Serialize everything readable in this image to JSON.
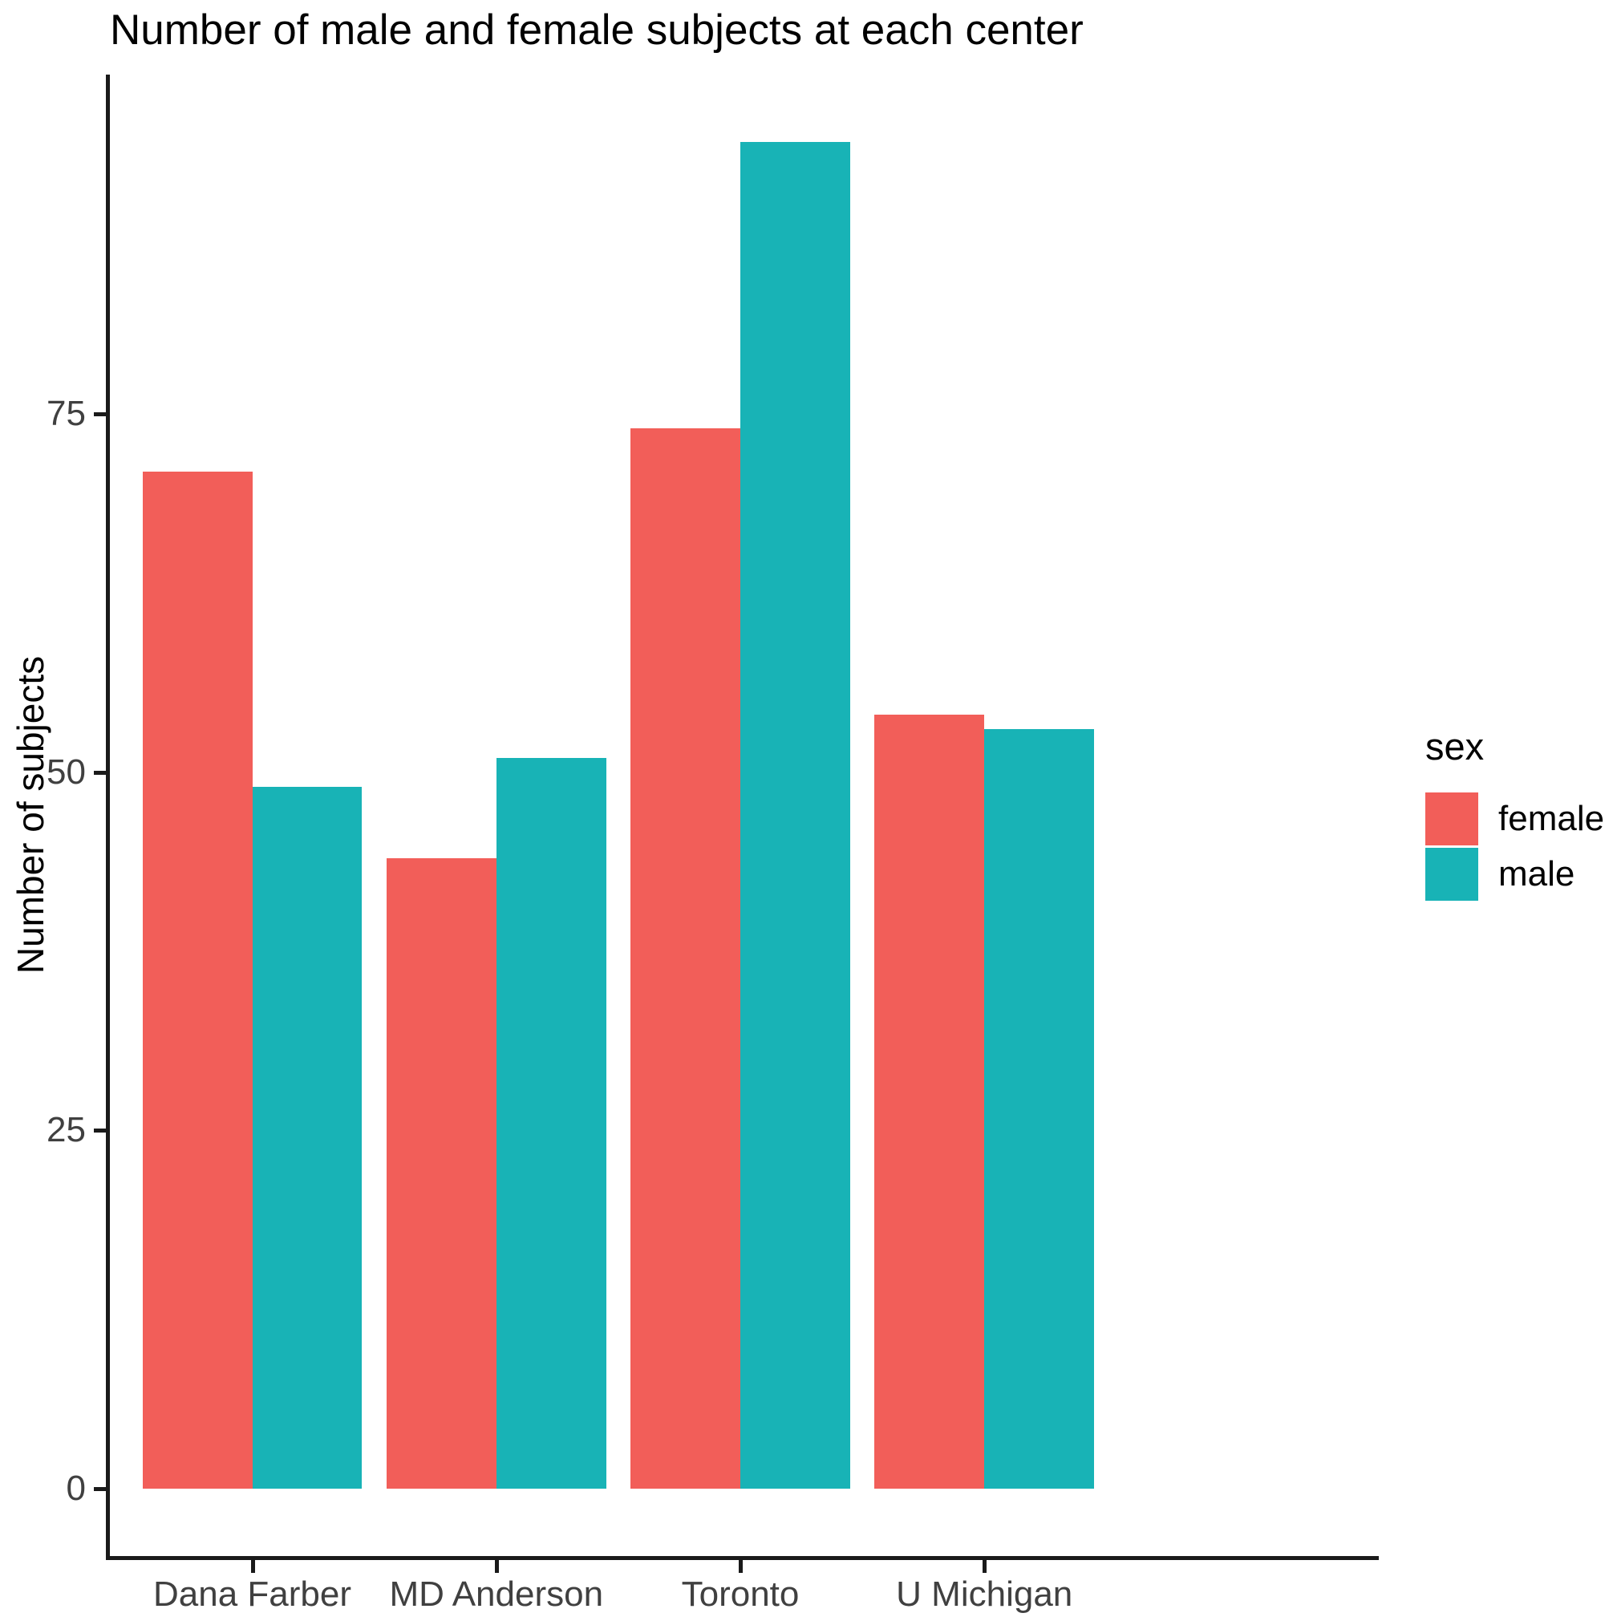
{
  "title": "Number of male and female subjects at each center",
  "legend": {
    "title": "sex",
    "items": [
      {
        "label": "female",
        "color": "#F25E59"
      },
      {
        "label": "male",
        "color": "#18B3B6"
      }
    ],
    "position": "right"
  },
  "chart_data": {
    "type": "bar",
    "grouping": "dodged",
    "title": "Number of male and female subjects at each center",
    "xlabel": "",
    "ylabel": "Number of subjects",
    "categories": [
      "Dana Farber",
      "MD Anderson",
      "Toronto",
      "U Michigan"
    ],
    "series": [
      {
        "name": "female",
        "color": "#F25E59",
        "values": [
          71,
          44,
          74,
          54
        ]
      },
      {
        "name": "male",
        "color": "#18B3B6",
        "values": [
          49,
          51,
          94,
          53
        ]
      }
    ],
    "yticks": [
      0,
      25,
      50,
      75
    ],
    "ylim": [
      0,
      94
    ],
    "grid": false,
    "legend_position": "right",
    "colors": {
      "axis_line": "#1a1a1a",
      "axis_text": "#404040",
      "title_text": "#000000"
    }
  }
}
